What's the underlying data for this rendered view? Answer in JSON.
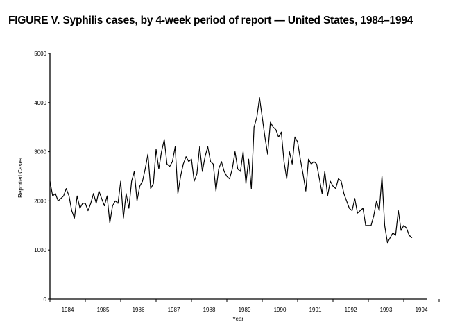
{
  "chart_data": {
    "type": "line",
    "title": "FIGURE V. Syphilis cases, by 4-week period of report — United States, 1984–1994",
    "xlabel": "Year",
    "ylabel": "Reported Cases",
    "ylim": [
      0,
      5000
    ],
    "yticks": [
      "0",
      "1000",
      "2000",
      "3000",
      "4000",
      "5000"
    ],
    "xticks": [
      "1984",
      "1985",
      "1986",
      "1987",
      "1988",
      "1989",
      "1990",
      "1991",
      "1992",
      "1993",
      "1994"
    ],
    "periods_per_year": 13,
    "start_year": 1984,
    "grid": false,
    "series": [
      {
        "name": "Reported cases",
        "values": [
          2400,
          2100,
          2150,
          2000,
          2050,
          2100,
          2250,
          2100,
          1800,
          1650,
          2100,
          1850,
          1950,
          1950,
          1800,
          1950,
          2150,
          1950,
          2200,
          2050,
          1900,
          2100,
          1550,
          1900,
          2000,
          1950,
          2400,
          1650,
          2150,
          1850,
          2400,
          2600,
          2000,
          2300,
          2400,
          2650,
          2950,
          2250,
          2350,
          3050,
          2650,
          3000,
          3250,
          2750,
          2700,
          2800,
          3100,
          2150,
          2500,
          2750,
          2900,
          2800,
          2850,
          2400,
          2550,
          3100,
          2600,
          2900,
          3100,
          2800,
          2750,
          2200,
          2650,
          2800,
          2600,
          2500,
          2450,
          2650,
          3000,
          2650,
          2600,
          3000,
          2350,
          2850,
          2250,
          3500,
          3700,
          4100,
          3700,
          3300,
          2950,
          3600,
          3500,
          3450,
          3300,
          3400,
          2800,
          2450,
          3000,
          2750,
          3300,
          3200,
          2850,
          2550,
          2200,
          2850,
          2750,
          2800,
          2750,
          2450,
          2150,
          2600,
          2100,
          2400,
          2300,
          2250,
          2450,
          2400,
          2150,
          2000,
          1850,
          1800,
          2050,
          1750,
          1800,
          1850,
          1500,
          1500,
          1500,
          1700,
          2000,
          1800,
          2500,
          1500,
          1150,
          1250,
          1350,
          1300,
          1800,
          1400,
          1500,
          1450,
          1300,
          1250
        ]
      }
    ]
  }
}
